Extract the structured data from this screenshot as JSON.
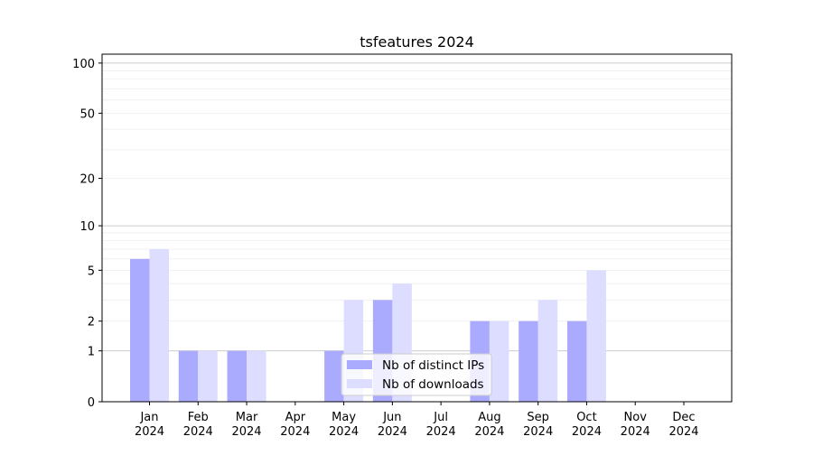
{
  "chart_data": {
    "type": "bar",
    "title": "tsfeatures 2024",
    "xlabel": "",
    "ylabel": "",
    "yscale": "log(1+y)",
    "ylim": [
      0,
      113
    ],
    "yticks": [
      0,
      1,
      2,
      5,
      10,
      20,
      50,
      100
    ],
    "grid": true,
    "legend_position": "lower-center",
    "categories": [
      "Jan\n2024",
      "Feb\n2024",
      "Mar\n2024",
      "Apr\n2024",
      "May\n2024",
      "Jun\n2024",
      "Jul\n2024",
      "Aug\n2024",
      "Sep\n2024",
      "Oct\n2024",
      "Nov\n2024",
      "Dec\n2024"
    ],
    "series": [
      {
        "name": "Nb of distinct IPs",
        "color": "#aaaaff",
        "values": [
          6,
          1,
          1,
          0,
          1,
          3,
          0,
          2,
          2,
          2,
          0,
          0
        ]
      },
      {
        "name": "Nb of downloads",
        "color": "#ddddff",
        "values": [
          7,
          1,
          1,
          0,
          3,
          4,
          0,
          2,
          3,
          5,
          0,
          0
        ]
      }
    ]
  }
}
